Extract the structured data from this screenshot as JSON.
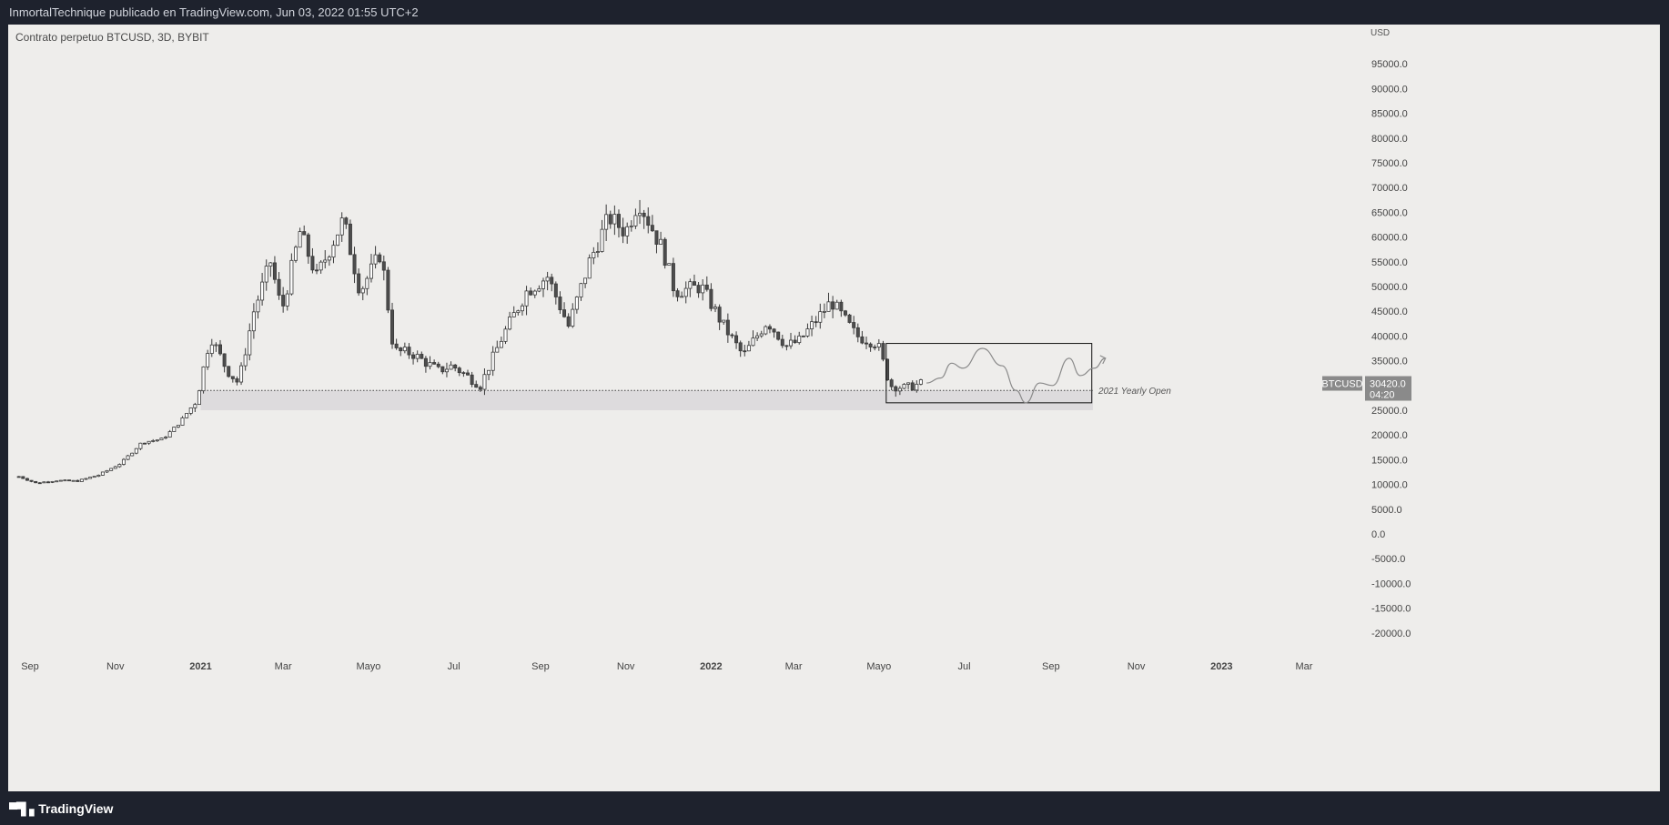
{
  "header": {
    "publisher_line": "InmortalTechnique publicado en TradingView.com, Jun 03, 2022 01:55 UTC+2"
  },
  "footer": {
    "brand": "TradingView",
    "brand_icon": "tradingview-logo-icon"
  },
  "colors": {
    "background": "#1e222d",
    "chart_bg": "#eeedeb",
    "candle_up": "#ffffff",
    "candle_down": "#4d4d4d",
    "candle_outline": "#3a3a3a",
    "zone_fill": "#d9d7db",
    "price_label_bg": "#8a8a8a"
  },
  "chart_data": {
    "type": "candlestick",
    "symbol_line": "Contrato perpetuo BTCUSD, 3D, BYBIT",
    "currency": "USD",
    "y_axis": {
      "min": -22500,
      "max": 100000,
      "ticks": [
        95000,
        90000,
        85000,
        80000,
        75000,
        70000,
        65000,
        60000,
        55000,
        50000,
        45000,
        40000,
        35000,
        30000,
        25000,
        20000,
        15000,
        10000,
        5000,
        0,
        -5000,
        -10000,
        -15000,
        -20000
      ],
      "tick_labels": [
        "95000.0",
        "90000.0",
        "85000.0",
        "80000.0",
        "75000.0",
        "70000.0",
        "65000.0",
        "60000.0",
        "55000.0",
        "50000.0",
        "45000.0",
        "40000.0",
        "35000.0",
        "",
        "25000.0",
        "20000.0",
        "15000.0",
        "10000.0",
        "5000.0",
        "0.0",
        "-5000.0",
        "-10000.0",
        "-15000.0",
        "-20000.0"
      ]
    },
    "x_axis": {
      "labels": [
        {
          "date": "2020-09-01",
          "text": "Sep"
        },
        {
          "date": "2020-11-01",
          "text": "Nov"
        },
        {
          "date": "2021-01-01",
          "text": "2021"
        },
        {
          "date": "2021-03-01",
          "text": "Mar"
        },
        {
          "date": "2021-05-01",
          "text": "Mayo"
        },
        {
          "date": "2021-07-01",
          "text": "Jul"
        },
        {
          "date": "2021-09-01",
          "text": "Sep"
        },
        {
          "date": "2021-11-01",
          "text": "Nov"
        },
        {
          "date": "2022-01-01",
          "text": "2022"
        },
        {
          "date": "2022-03-01",
          "text": "Mar"
        },
        {
          "date": "2022-05-01",
          "text": "Mayo"
        },
        {
          "date": "2022-07-01",
          "text": "Jul"
        },
        {
          "date": "2022-09-01",
          "text": "Sep"
        },
        {
          "date": "2022-11-01",
          "text": "Nov"
        },
        {
          "date": "2023-01-01",
          "text": "2023"
        },
        {
          "date": "2023-03-01",
          "text": "Mar"
        }
      ]
    },
    "price_path": [
      [
        "2020-08-24",
        11600
      ],
      [
        "2020-09-05",
        10300
      ],
      [
        "2020-09-20",
        10800
      ],
      [
        "2020-10-05",
        10700
      ],
      [
        "2020-10-20",
        11900
      ],
      [
        "2020-11-05",
        14300
      ],
      [
        "2020-11-20",
        18500
      ],
      [
        "2020-12-05",
        19200
      ],
      [
        "2020-12-17",
        22500
      ],
      [
        "2020-12-29",
        27000
      ],
      [
        "2021-01-08",
        40000
      ],
      [
        "2021-01-20",
        33000
      ],
      [
        "2021-01-28",
        30500
      ],
      [
        "2021-02-08",
        45000
      ],
      [
        "2021-02-20",
        55000
      ],
      [
        "2021-02-28",
        45000
      ],
      [
        "2021-03-13",
        61000
      ],
      [
        "2021-03-25",
        52000
      ],
      [
        "2021-04-13",
        63500
      ],
      [
        "2021-04-25",
        49000
      ],
      [
        "2021-05-10",
        57000
      ],
      [
        "2021-05-19",
        37000
      ],
      [
        "2021-06-01",
        36500
      ],
      [
        "2021-06-20",
        33000
      ],
      [
        "2021-06-30",
        34000
      ],
      [
        "2021-07-20",
        30000
      ],
      [
        "2021-08-05",
        40000
      ],
      [
        "2021-08-22",
        49000
      ],
      [
        "2021-09-06",
        52000
      ],
      [
        "2021-09-21",
        42000
      ],
      [
        "2021-10-06",
        55000
      ],
      [
        "2021-10-20",
        64000
      ],
      [
        "2021-11-01",
        61000
      ],
      [
        "2021-11-10",
        67500
      ],
      [
        "2021-11-28",
        57000
      ],
      [
        "2021-12-06",
        49000
      ],
      [
        "2021-12-25",
        50000
      ],
      [
        "2022-01-10",
        42000
      ],
      [
        "2022-01-24",
        36000
      ],
      [
        "2022-02-10",
        43000
      ],
      [
        "2022-02-24",
        38000
      ],
      [
        "2022-03-05",
        39000
      ],
      [
        "2022-03-28",
        47000
      ],
      [
        "2022-04-15",
        40000
      ],
      [
        "2022-04-30",
        38500
      ],
      [
        "2022-05-09",
        30000
      ],
      [
        "2022-05-20",
        29500
      ],
      [
        "2022-06-01",
        30420
      ]
    ],
    "zone": {
      "label": "",
      "from_date": "2021-01-01",
      "to_date": "2022-10-01",
      "low": 25000,
      "high": 29000
    },
    "yearly_open": {
      "label": "2021 Yearly Open",
      "value": 29000
    },
    "projection_box": {
      "from_date": "2022-05-01",
      "to_date": "2022-09-25",
      "low": 26500,
      "high": 38500
    },
    "projection_path": [
      [
        "2022-06-04",
        30500
      ],
      [
        "2022-06-14",
        31500
      ],
      [
        "2022-06-22",
        34500
      ],
      [
        "2022-06-30",
        33500
      ],
      [
        "2022-07-14",
        37500
      ],
      [
        "2022-07-28",
        34000
      ],
      [
        "2022-08-07",
        29000
      ],
      [
        "2022-08-14",
        26500
      ],
      [
        "2022-08-24",
        30500
      ],
      [
        "2022-09-02",
        30000
      ],
      [
        "2022-09-14",
        35500
      ],
      [
        "2022-09-22",
        32000
      ],
      [
        "2022-10-02",
        33500
      ],
      [
        "2022-10-10",
        35500
      ]
    ],
    "last_price": {
      "symbol": "BTCUSD",
      "value": "30420.0",
      "countdown": "04:20"
    }
  }
}
